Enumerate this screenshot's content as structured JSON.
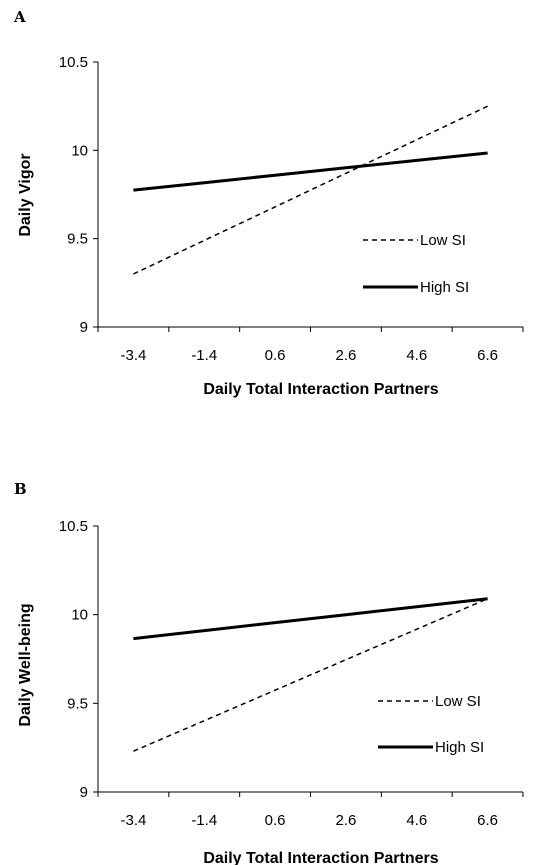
{
  "chart_data": [
    {
      "panel": "A",
      "type": "line",
      "x": [
        -3.4,
        -1.4,
        0.6,
        2.6,
        4.6,
        6.6
      ],
      "xlabel": "Daily Total Interaction Partners",
      "ylabel": "Daily Vigor",
      "ylim": [
        9,
        10.5
      ],
      "yticks": [
        "9",
        "9.5",
        "10",
        "10.5"
      ],
      "xticks": [
        "-3.4",
        "-1.4",
        "0.6",
        "2.6",
        "4.6",
        "6.6"
      ],
      "series": [
        {
          "name": "Low SI",
          "style": "dashed",
          "values": [
            9.3,
            9.49,
            9.68,
            9.87,
            10.06,
            10.25
          ]
        },
        {
          "name": "High SI",
          "style": "solid",
          "values": [
            9.775,
            9.817,
            9.859,
            9.901,
            9.943,
            9.985
          ]
        }
      ],
      "legend": "right-center",
      "grid": false
    },
    {
      "panel": "B",
      "type": "line",
      "x": [
        -3.4,
        -1.4,
        0.6,
        2.6,
        4.6,
        6.6
      ],
      "xlabel": "Daily Total Interaction Partners",
      "ylabel": "Daily Well-being",
      "ylim": [
        9,
        10.5
      ],
      "yticks": [
        "9",
        "9.5",
        "10",
        "10.5"
      ],
      "xticks": [
        "-3.4",
        "-1.4",
        "0.6",
        "2.6",
        "4.6",
        "6.6"
      ],
      "series": [
        {
          "name": "Low SI",
          "style": "dashed",
          "values": [
            9.23,
            9.402,
            9.574,
            9.746,
            9.918,
            10.09
          ]
        },
        {
          "name": "High SI",
          "style": "solid",
          "values": [
            9.865,
            9.91,
            9.955,
            10.0,
            10.045,
            10.09
          ]
        }
      ],
      "legend": "right-center",
      "grid": false
    }
  ]
}
